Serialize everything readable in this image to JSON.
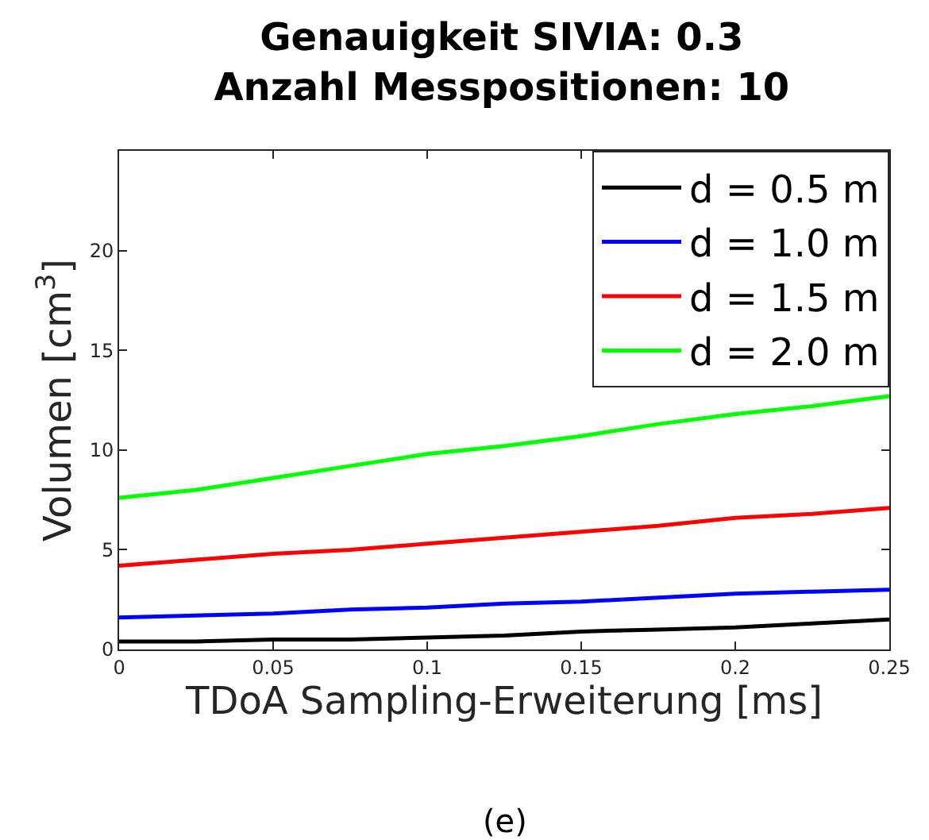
{
  "chart_data": {
    "type": "line",
    "title": "Genauigkeit SIVIA: 0.3\nAnzahl Messpositionen: 10",
    "xlabel": "TDoA Sampling-Erweiterung [ms]",
    "ylabel": "Volumen [cm$^{3}$]",
    "x": [
      0,
      0.025,
      0.05,
      0.075,
      0.1,
      0.125,
      0.15,
      0.175,
      0.2,
      0.225,
      0.25
    ],
    "series": [
      {
        "name": "d = 0.5 m",
        "color": "#000000",
        "values": [
          0.4,
          0.4,
          0.5,
          0.5,
          0.6,
          0.7,
          0.9,
          1.0,
          1.1,
          1.3,
          1.5
        ]
      },
      {
        "name": "d = 1.0 m",
        "color": "#0000ff",
        "values": [
          1.6,
          1.7,
          1.8,
          2.0,
          2.1,
          2.3,
          2.4,
          2.6,
          2.8,
          2.9,
          3.0
        ]
      },
      {
        "name": "d = 1.5 m",
        "color": "#ff0000",
        "values": [
          4.2,
          4.5,
          4.8,
          5.0,
          5.3,
          5.6,
          5.9,
          6.2,
          6.6,
          6.8,
          7.1
        ]
      },
      {
        "name": "d = 2.0 m",
        "color": "#00ff00",
        "values": [
          7.6,
          8.0,
          8.6,
          9.2,
          9.8,
          10.2,
          10.7,
          11.3,
          11.8,
          12.2,
          12.7
        ]
      }
    ],
    "xlim": [
      0,
      0.25
    ],
    "xticks": [
      0,
      0.05,
      0.1,
      0.15,
      0.2,
      0.25
    ],
    "ylim": [
      0,
      25
    ],
    "yticks": [
      0,
      5,
      10,
      15,
      20
    ],
    "legend": "top right",
    "marker": "none",
    "line_style": "solid",
    "annotations": [
      "(e)"
    ]
  }
}
